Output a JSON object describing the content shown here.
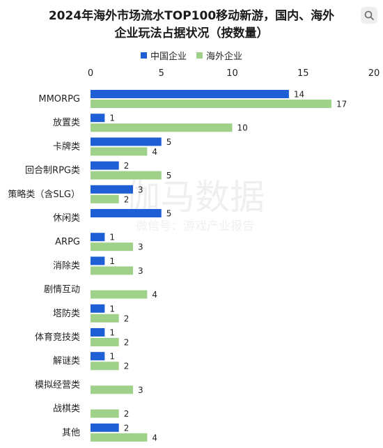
{
  "title_line1": "2024年海外市场流水TOP100移动新游，国内、海外",
  "title_line2": "企业玩法占据状况（按数量）",
  "legend": [
    {
      "label": "中国企业",
      "color": "#1f5fd6"
    },
    {
      "label": "海外企业",
      "color": "#9fd18a"
    }
  ],
  "watermark": {
    "main": "伽马数据",
    "sub": "微信号：游戏产业报告"
  },
  "icons": {
    "corner": "lens-search-icon"
  },
  "chart_data": {
    "type": "bar",
    "orientation": "horizontal",
    "categories": [
      "MMORPG",
      "放置类",
      "卡牌类",
      "回合制RPG类",
      "策略类（含SLG）",
      "休闲类",
      "ARPG",
      "消除类",
      "剧情互动",
      "塔防类",
      "体育竞技类",
      "解谜类",
      "模拟经营类",
      "战棋类",
      "其他"
    ],
    "series": [
      {
        "name": "中国企业",
        "color": "#1f5fd6",
        "values": [
          14,
          1,
          5,
          2,
          3,
          5,
          1,
          1,
          null,
          1,
          1,
          1,
          null,
          null,
          2
        ]
      },
      {
        "name": "海外企业",
        "color": "#9fd18a",
        "values": [
          17,
          10,
          4,
          5,
          2,
          null,
          3,
          3,
          4,
          2,
          2,
          2,
          3,
          2,
          4
        ]
      }
    ],
    "xlim": [
      0,
      20
    ],
    "xticks": [
      "0",
      "5",
      "10",
      "15",
      "20"
    ],
    "axis_position": "top",
    "grid": false,
    "legend_position": "top"
  }
}
